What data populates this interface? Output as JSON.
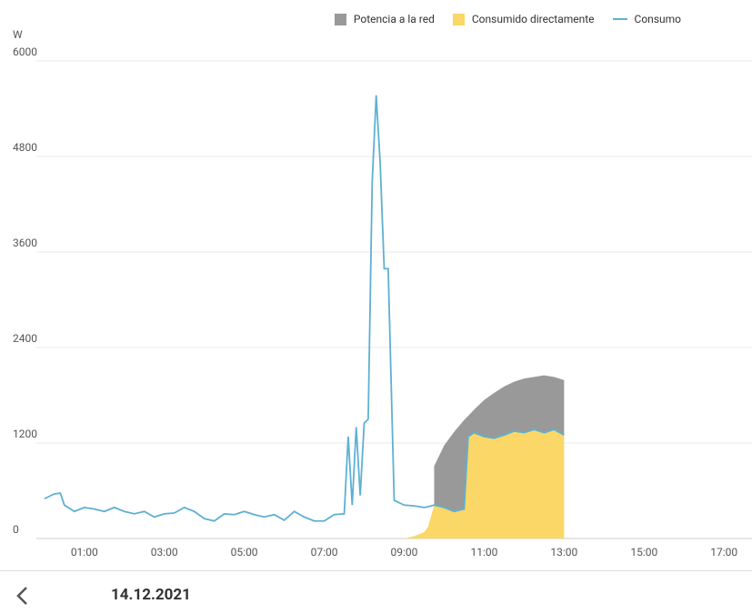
{
  "chart_data": {
    "type": "area",
    "y_label": "W",
    "stacked": true,
    "grid": true,
    "xlim": [
      -0.2,
      17.7
    ],
    "ylim": [
      0,
      6000
    ],
    "yticks": [
      0,
      1200,
      2400,
      3600,
      4800,
      6000
    ],
    "xticks": [
      {
        "value": 1,
        "label": "01:00"
      },
      {
        "value": 3,
        "label": "03:00"
      },
      {
        "value": 5,
        "label": "05:00"
      },
      {
        "value": 7,
        "label": "07:00"
      },
      {
        "value": 9,
        "label": "09:00"
      },
      {
        "value": 11,
        "label": "11:00"
      },
      {
        "value": 13,
        "label": "13:00"
      },
      {
        "value": 15,
        "label": "15:00"
      },
      {
        "value": 17,
        "label": "17:00"
      }
    ],
    "x": [
      0,
      0.25,
      0.4,
      0.5,
      0.75,
      1,
      1.25,
      1.5,
      1.75,
      2,
      2.25,
      2.5,
      2.75,
      3,
      3.25,
      3.5,
      3.75,
      4,
      4.25,
      4.5,
      4.75,
      5,
      5.25,
      5.5,
      5.75,
      6,
      6.25,
      6.5,
      6.75,
      7,
      7.25,
      7.5,
      7.6,
      7.7,
      7.8,
      7.9,
      8,
      8.1,
      8.2,
      8.3,
      8.4,
      8.5,
      8.6,
      8.75,
      9,
      9.25,
      9.5,
      9.6,
      9.75,
      10,
      10.25,
      10.5,
      10.6,
      10.75,
      11,
      11.25,
      11.5,
      11.75,
      12,
      12.25,
      12.5,
      12.75,
      13
    ],
    "series": [
      {
        "name": "Potencia a la red",
        "kind": "area",
        "color": "#999999",
        "values": [
          null,
          null,
          null,
          null,
          null,
          null,
          null,
          null,
          null,
          null,
          null,
          null,
          null,
          null,
          null,
          null,
          null,
          null,
          null,
          null,
          null,
          null,
          null,
          null,
          null,
          null,
          null,
          null,
          null,
          null,
          null,
          null,
          null,
          null,
          null,
          null,
          null,
          null,
          null,
          null,
          null,
          null,
          null,
          null,
          null,
          null,
          null,
          null,
          490,
          780,
          1000,
          1120,
          260,
          290,
          460,
          570,
          610,
          620,
          680,
          660,
          720,
          660,
          690
        ]
      },
      {
        "name": "Consumido directamente",
        "kind": "area",
        "color": "#fad766",
        "values": [
          null,
          null,
          null,
          null,
          null,
          null,
          null,
          null,
          null,
          null,
          null,
          null,
          null,
          null,
          null,
          null,
          null,
          null,
          null,
          null,
          null,
          null,
          null,
          null,
          null,
          null,
          null,
          null,
          null,
          null,
          null,
          null,
          null,
          null,
          null,
          null,
          null,
          null,
          null,
          null,
          null,
          null,
          null,
          null,
          0,
          30,
          80,
          150,
          420,
          390,
          340,
          370,
          1280,
          1330,
          1280,
          1260,
          1300,
          1350,
          1330,
          1370,
          1330,
          1370,
          1300
        ]
      },
      {
        "name": "Consumo",
        "kind": "line",
        "color": "#5eb0d3",
        "values": [
          500,
          560,
          570,
          420,
          340,
          390,
          370,
          340,
          390,
          340,
          310,
          340,
          270,
          310,
          320,
          390,
          340,
          250,
          220,
          310,
          300,
          340,
          300,
          270,
          300,
          230,
          340,
          270,
          220,
          220,
          300,
          310,
          1280,
          420,
          1400,
          540,
          1450,
          1500,
          4480,
          5570,
          4710,
          3390,
          3390,
          480,
          420,
          410,
          390,
          400,
          420,
          390,
          340,
          370,
          1280,
          1330,
          1280,
          1260,
          1300,
          1350,
          1330,
          1370,
          1330,
          1370,
          1300
        ]
      }
    ]
  },
  "footer": {
    "date": "14.12.2021"
  }
}
